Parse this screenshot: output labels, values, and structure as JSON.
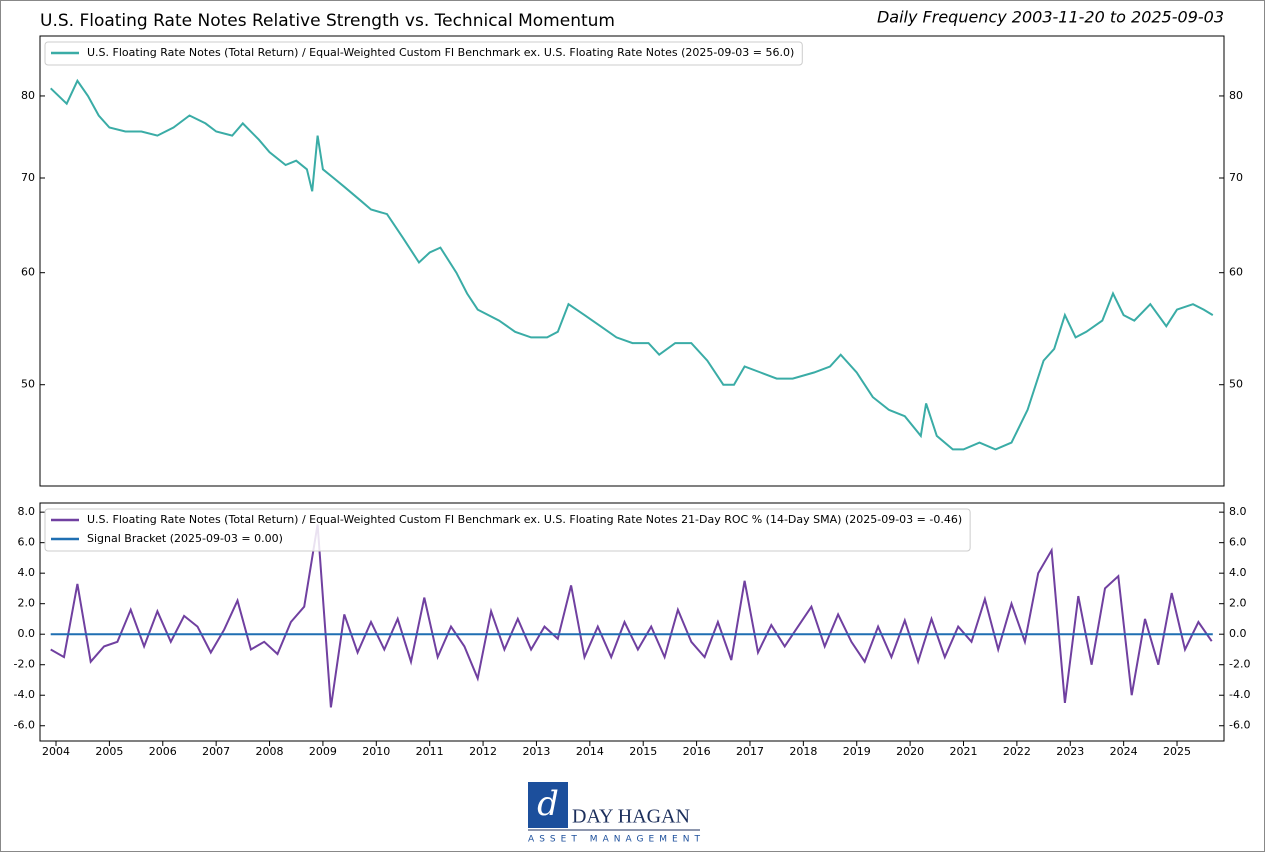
{
  "chart_data": [
    {
      "type": "line",
      "title": "U.S. Floating Rate Notes Relative Strength vs. Technical Momentum",
      "subtitle": "Daily Frequency 2003-11-20 to 2025-09-03",
      "yscale": "log",
      "xlim": [
        2003.7,
        2025.88
      ],
      "ylim": [
        42.4,
        88.2
      ],
      "yticks": [
        50,
        60,
        70,
        80
      ],
      "legend": "upper left",
      "series": [
        {
          "name": "U.S. Floating Rate Notes (Total Return) / Equal-Weighted Custom FI Benchmark ex. U.S. Floating Rate Notes (2025-09-03 = 56.0)",
          "color": "#3aaca6",
          "x": [
            2003.9,
            2004.2,
            2004.4,
            2004.6,
            2004.8,
            2005.0,
            2005.3,
            2005.6,
            2005.9,
            2006.2,
            2006.5,
            2006.8,
            2007.0,
            2007.3,
            2007.5,
            2007.8,
            2008.0,
            2008.3,
            2008.5,
            2008.7,
            2008.8,
            2008.9,
            2009.0,
            2009.2,
            2009.4,
            2009.7,
            2009.9,
            2010.2,
            2010.5,
            2010.8,
            2011.0,
            2011.2,
            2011.5,
            2011.7,
            2011.9,
            2012.3,
            2012.6,
            2012.9,
            2013.2,
            2013.4,
            2013.6,
            2013.9,
            2014.2,
            2014.5,
            2014.8,
            2015.1,
            2015.3,
            2015.6,
            2015.9,
            2016.2,
            2016.5,
            2016.7,
            2016.9,
            2017.2,
            2017.5,
            2017.8,
            2018.2,
            2018.5,
            2018.7,
            2019.0,
            2019.3,
            2019.6,
            2019.9,
            2020.2,
            2020.3,
            2020.5,
            2020.8,
            2021.0,
            2021.3,
            2021.6,
            2021.9,
            2022.2,
            2022.5,
            2022.7,
            2022.9,
            2023.1,
            2023.3,
            2023.6,
            2023.8,
            2024.0,
            2024.2,
            2024.5,
            2024.8,
            2025.0,
            2025.3,
            2025.5,
            2025.67
          ],
          "values": [
            81,
            79,
            82,
            80,
            77.5,
            76,
            75.5,
            75.5,
            75,
            76,
            77.5,
            76.5,
            75.5,
            75,
            76.5,
            74.5,
            73,
            71.5,
            72,
            71,
            68.5,
            75,
            71,
            70,
            69,
            67.5,
            66.5,
            66,
            63.5,
            61,
            62,
            62.5,
            60,
            58,
            56.5,
            55.5,
            54.5,
            54,
            54,
            54.5,
            57,
            56,
            55,
            54,
            53.5,
            53.5,
            52.5,
            53.5,
            53.5,
            52,
            50,
            50,
            51.5,
            51,
            50.5,
            50.5,
            51,
            51.5,
            52.5,
            51,
            49,
            48,
            47.5,
            46,
            48.5,
            46,
            45,
            45,
            45.5,
            45,
            45.5,
            48,
            52,
            53,
            56,
            54,
            54.5,
            55.5,
            58,
            56,
            55.5,
            57,
            55,
            56.5,
            57,
            56.5,
            56.0
          ]
        }
      ]
    },
    {
      "type": "line",
      "xlim": [
        2003.7,
        2025.88
      ],
      "ylim": [
        -7.0,
        8.6
      ],
      "yticks": [
        {
          "value": -6,
          "label": "-6.0"
        },
        {
          "value": -4,
          "label": "-4.0"
        },
        {
          "value": -2,
          "label": "-2.0"
        },
        {
          "value": 0,
          "label": "0.0"
        },
        {
          "value": 2,
          "label": "2.0"
        },
        {
          "value": 4,
          "label": "4.0"
        },
        {
          "value": 6,
          "label": "6.0"
        },
        {
          "value": 8,
          "label": "8.0"
        }
      ],
      "xticks": [
        2004,
        2005,
        2006,
        2007,
        2008,
        2009,
        2010,
        2011,
        2012,
        2013,
        2014,
        2015,
        2016,
        2017,
        2018,
        2019,
        2020,
        2021,
        2022,
        2023,
        2024,
        2025
      ],
      "legend": "upper left",
      "series": [
        {
          "name": "U.S. Floating Rate Notes (Total Return) / Equal-Weighted Custom FI Benchmark ex. U.S. Floating Rate Notes 21-Day ROC % (14-Day SMA) (2025-09-03 = -0.46)",
          "color": "#7040a0",
          "x": [
            2003.9,
            2004.15,
            2004.4,
            2004.65,
            2004.9,
            2005.15,
            2005.4,
            2005.65,
            2005.9,
            2006.15,
            2006.4,
            2006.65,
            2006.9,
            2007.15,
            2007.4,
            2007.65,
            2007.9,
            2008.15,
            2008.4,
            2008.65,
            2008.9,
            2009.15,
            2009.4,
            2009.65,
            2009.9,
            2010.15,
            2010.4,
            2010.65,
            2010.9,
            2011.15,
            2011.4,
            2011.65,
            2011.9,
            2012.15,
            2012.4,
            2012.65,
            2012.9,
            2013.15,
            2013.4,
            2013.65,
            2013.9,
            2014.15,
            2014.4,
            2014.65,
            2014.9,
            2015.15,
            2015.4,
            2015.65,
            2015.9,
            2016.15,
            2016.4,
            2016.65,
            2016.9,
            2017.15,
            2017.4,
            2017.65,
            2017.9,
            2018.15,
            2018.4,
            2018.65,
            2018.9,
            2019.15,
            2019.4,
            2019.65,
            2019.9,
            2020.15,
            2020.4,
            2020.65,
            2020.9,
            2021.15,
            2021.4,
            2021.65,
            2021.9,
            2022.15,
            2022.4,
            2022.65,
            2022.9,
            2023.15,
            2023.4,
            2023.65,
            2023.9,
            2024.15,
            2024.4,
            2024.65,
            2024.9,
            2025.15,
            2025.4,
            2025.65
          ],
          "values": [
            -1,
            -1.5,
            3.3,
            -1.8,
            -0.8,
            -0.5,
            1.6,
            -0.8,
            1.5,
            -0.5,
            1.2,
            0.5,
            -1.2,
            0.3,
            2.2,
            -1,
            -0.5,
            -1.3,
            0.8,
            1.8,
            7.2,
            -4.8,
            1.3,
            -1.2,
            0.8,
            -1,
            1,
            -1.8,
            2.4,
            -1.5,
            0.5,
            -0.8,
            -2.9,
            1.5,
            -1,
            1,
            -1,
            0.5,
            -0.3,
            3.2,
            -1.5,
            0.5,
            -1.5,
            0.8,
            -1,
            0.5,
            -1.5,
            1.6,
            -0.5,
            -1.5,
            0.8,
            -1.7,
            3.5,
            -1.2,
            0.6,
            -0.8,
            0.5,
            1.8,
            -0.8,
            1.3,
            -0.5,
            -1.8,
            0.5,
            -1.5,
            0.9,
            -1.8,
            1,
            -1.5,
            0.5,
            -0.5,
            2.3,
            -1,
            2,
            -0.5,
            4,
            5.5,
            -4.5,
            2.5,
            -2,
            3,
            3.8,
            -4,
            1,
            -2,
            2.7,
            -1,
            0.8,
            -0.46
          ]
        },
        {
          "name": "Signal Bracket (2025-09-03 = 0.00)",
          "color": "#1f6fb2",
          "x": [
            2003.9,
            2025.67
          ],
          "values": [
            0,
            0
          ]
        }
      ]
    }
  ],
  "logo": {
    "name": "DAY HAGAN",
    "tagline": "ASSET MANAGEMENT"
  }
}
